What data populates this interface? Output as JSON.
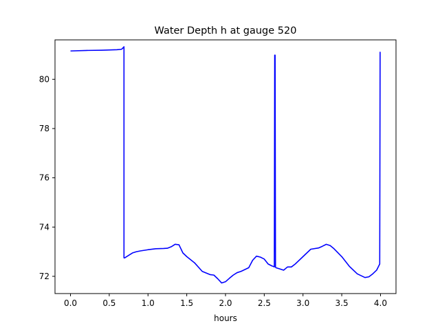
{
  "chart_data": {
    "type": "line",
    "title": "Water Depth h at gauge 520",
    "xlabel": "hours",
    "ylabel": "",
    "xlim": [
      -0.2,
      4.2
    ],
    "ylim": [
      71.3,
      81.6
    ],
    "xticks": [
      0.0,
      0.5,
      1.0,
      1.5,
      2.0,
      2.5,
      3.0,
      3.5,
      4.0
    ],
    "xtick_labels": [
      "0.0",
      "0.5",
      "1.0",
      "1.5",
      "2.0",
      "2.5",
      "3.0",
      "3.5",
      "4.0"
    ],
    "yticks": [
      72,
      74,
      76,
      78,
      80
    ],
    "ytick_labels": [
      "72",
      "74",
      "76",
      "78",
      "80"
    ],
    "grid": false,
    "color": "#0000ff",
    "series": [
      {
        "x": [
          0.0,
          0.2,
          0.4,
          0.6,
          0.66,
          0.69,
          0.69,
          0.7,
          0.75,
          0.8,
          0.85,
          0.9,
          1.0,
          1.1,
          1.2,
          1.25,
          1.3,
          1.35,
          1.4,
          1.45,
          1.5,
          1.6,
          1.7,
          1.8,
          1.85,
          1.9,
          1.95,
          2.0,
          2.05,
          2.1,
          2.15,
          2.2,
          2.3,
          2.35,
          2.4,
          2.45,
          2.5,
          2.55,
          2.6,
          2.62,
          2.63,
          2.635,
          2.64,
          2.645,
          2.65,
          2.7,
          2.75,
          2.8,
          2.85,
          2.9,
          3.0,
          3.1,
          3.2,
          3.25,
          3.3,
          3.35,
          3.4,
          3.5,
          3.6,
          3.7,
          3.8,
          3.85,
          3.9,
          3.95,
          3.99,
          3.995,
          4.0
        ],
        "y": [
          81.15,
          81.17,
          81.18,
          81.2,
          81.22,
          81.32,
          72.75,
          72.75,
          72.85,
          72.95,
          73.0,
          73.03,
          73.08,
          73.12,
          73.13,
          73.14,
          73.2,
          73.3,
          73.28,
          72.95,
          72.8,
          72.55,
          72.2,
          72.07,
          72.05,
          71.9,
          71.73,
          71.78,
          71.92,
          72.05,
          72.15,
          72.2,
          72.35,
          72.65,
          72.82,
          72.78,
          72.7,
          72.5,
          72.42,
          72.4,
          72.38,
          80.98,
          80.98,
          72.38,
          72.35,
          72.3,
          72.25,
          72.38,
          72.38,
          72.5,
          72.8,
          73.1,
          73.15,
          73.22,
          73.3,
          73.25,
          73.12,
          72.8,
          72.4,
          72.1,
          71.95,
          71.98,
          72.1,
          72.25,
          72.5,
          81.1,
          81.1
        ]
      }
    ]
  }
}
